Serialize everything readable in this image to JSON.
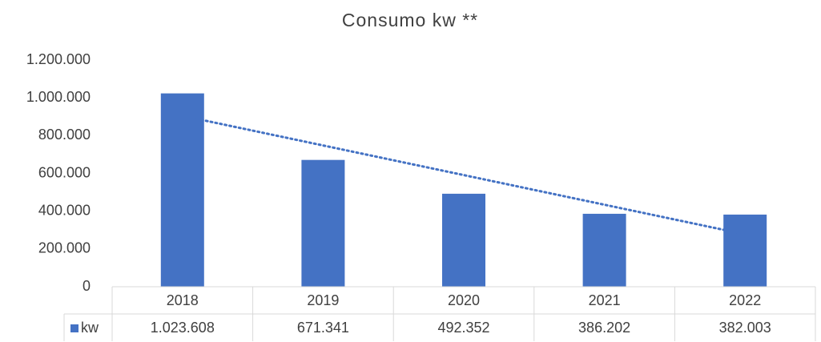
{
  "chart_data": {
    "type": "bar",
    "title": "Consumo kw **",
    "categories": [
      "2018",
      "2019",
      "2020",
      "2021",
      "2022"
    ],
    "series": [
      {
        "name": "kw",
        "color": "#4472c4",
        "values": [
          1023608,
          671341,
          492352,
          386202,
          382003
        ],
        "value_labels": [
          "1.023.608",
          "671.341",
          "492.352",
          "386.202",
          "382.003"
        ]
      }
    ],
    "ylim": [
      0,
      1200000
    ],
    "yticks": [
      0,
      {
        "value": 200000,
        "label": "200.000"
      },
      {
        "value": 400000,
        "label": "400.000"
      },
      {
        "value": 600000,
        "label": "600.000"
      },
      {
        "value": 800000,
        "label": "800.000"
      },
      {
        "value": 1000000,
        "label": "1.000.000"
      },
      {
        "value": 1200000,
        "label": "1.200.000"
      }
    ],
    "grid": false,
    "trendline": "linear",
    "data_table": true
  }
}
